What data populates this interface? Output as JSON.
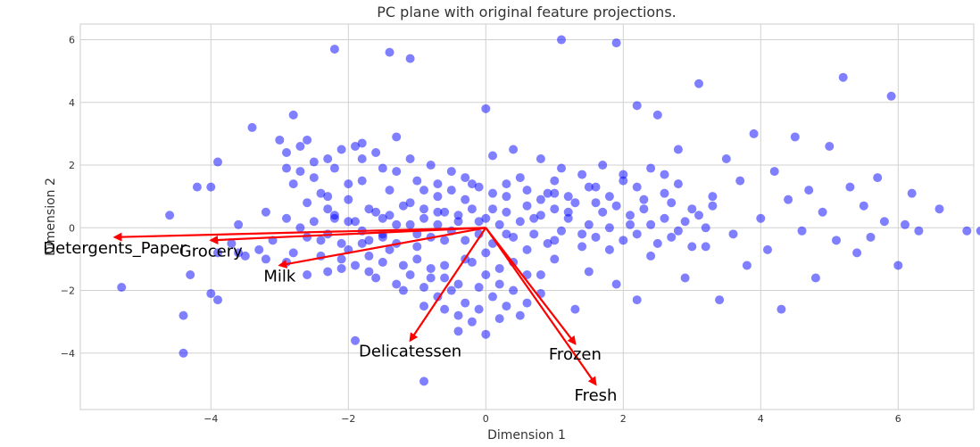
{
  "chart_data": {
    "type": "scatter",
    "title": "PC plane with original feature projections.",
    "xlabel": "Dimension 1",
    "ylabel": "Dimension 2",
    "xlim": [
      -5.9,
      7.1
    ],
    "ylim": [
      -5.8,
      6.5
    ],
    "xticks": [
      -4,
      -2,
      0,
      2,
      4,
      6
    ],
    "yticks": [
      -4,
      -2,
      0,
      2,
      4,
      6
    ],
    "xtick_labels": [
      "−4",
      "−2",
      "0",
      "2",
      "4",
      "6"
    ],
    "ytick_labels": [
      "−4",
      "−2",
      "0",
      "2",
      "4",
      "6"
    ],
    "grid": true,
    "point_color": "#0000ff",
    "arrow_color": "#ff0000",
    "points": [
      [
        -5.3,
        -1.9
      ],
      [
        -4.6,
        0.4
      ],
      [
        -4.4,
        -2.8
      ],
      [
        -4.4,
        -4.0
      ],
      [
        -4.3,
        -1.5
      ],
      [
        -4.2,
        1.3
      ],
      [
        -4.0,
        1.3
      ],
      [
        -4.0,
        -2.1
      ],
      [
        -3.9,
        -2.3
      ],
      [
        -3.9,
        2.1
      ],
      [
        -3.9,
        -0.8
      ],
      [
        -3.7,
        -0.5
      ],
      [
        -3.6,
        -0.8
      ],
      [
        -3.6,
        0.1
      ],
      [
        -3.5,
        -0.9
      ],
      [
        -3.4,
        3.2
      ],
      [
        -3.3,
        -0.7
      ],
      [
        -3.2,
        -1.0
      ],
      [
        -3.1,
        -0.4
      ],
      [
        -3.0,
        2.8
      ],
      [
        -2.9,
        2.4
      ],
      [
        -2.9,
        1.9
      ],
      [
        -2.9,
        -1.1
      ],
      [
        -2.8,
        3.6
      ],
      [
        -2.8,
        1.4
      ],
      [
        -2.8,
        -0.8
      ],
      [
        -2.7,
        2.6
      ],
      [
        -2.7,
        1.8
      ],
      [
        -2.6,
        2.8
      ],
      [
        -2.6,
        -0.3
      ],
      [
        -2.6,
        -1.5
      ],
      [
        -2.5,
        2.1
      ],
      [
        -2.5,
        1.6
      ],
      [
        -2.5,
        0.2
      ],
      [
        -2.4,
        1.1
      ],
      [
        -2.4,
        -0.9
      ],
      [
        -2.3,
        2.2
      ],
      [
        -2.3,
        1.0
      ],
      [
        -2.3,
        0.6
      ],
      [
        -2.3,
        -0.2
      ],
      [
        -2.2,
        5.7
      ],
      [
        -2.2,
        1.9
      ],
      [
        -2.2,
        0.3
      ],
      [
        -2.1,
        2.5
      ],
      [
        -2.1,
        -1.3
      ],
      [
        -2.0,
        1.4
      ],
      [
        -2.0,
        0.9
      ],
      [
        -2.0,
        -0.7
      ],
      [
        -1.9,
        2.6
      ],
      [
        -1.9,
        0.2
      ],
      [
        -1.9,
        -3.6
      ],
      [
        -1.8,
        2.7
      ],
      [
        -1.8,
        2.2
      ],
      [
        -1.8,
        1.5
      ],
      [
        -1.8,
        -0.5
      ],
      [
        -1.7,
        0.6
      ],
      [
        -1.7,
        -0.9
      ],
      [
        -1.6,
        2.4
      ],
      [
        -1.6,
        -1.6
      ],
      [
        -1.5,
        1.9
      ],
      [
        -1.5,
        0.3
      ],
      [
        -1.5,
        -0.3
      ],
      [
        -1.4,
        5.6
      ],
      [
        -1.4,
        1.2
      ],
      [
        -1.4,
        -0.7
      ],
      [
        -1.3,
        2.9
      ],
      [
        -1.3,
        1.8
      ],
      [
        -1.3,
        0.1
      ],
      [
        -1.2,
        -1.2
      ],
      [
        -1.2,
        -2.0
      ],
      [
        -1.1,
        5.4
      ],
      [
        -1.1,
        2.2
      ],
      [
        -1.1,
        0.8
      ],
      [
        -1.0,
        -0.6
      ],
      [
        -1.0,
        1.5
      ],
      [
        -0.9,
        -4.9
      ],
      [
        -0.9,
        -2.5
      ],
      [
        -0.9,
        0.3
      ],
      [
        -0.8,
        2.0
      ],
      [
        -0.8,
        -1.6
      ],
      [
        -0.7,
        1.4
      ],
      [
        -0.7,
        0.5
      ],
      [
        -0.6,
        -0.4
      ],
      [
        -0.6,
        -1.2
      ],
      [
        -0.5,
        1.2
      ],
      [
        -0.4,
        0.2
      ],
      [
        -0.4,
        -2.8
      ],
      [
        -0.3,
        0.9
      ],
      [
        -0.3,
        -1.0
      ],
      [
        -0.2,
        1.4
      ],
      [
        -0.1,
        0.2
      ],
      [
        0.0,
        -0.8
      ],
      [
        -0.1,
        -1.9
      ],
      [
        0.0,
        3.8
      ],
      [
        0.1,
        2.3
      ],
      [
        0.1,
        0.6
      ],
      [
        0.2,
        -1.3
      ],
      [
        0.3,
        1.0
      ],
      [
        0.3,
        -0.2
      ],
      [
        0.4,
        2.5
      ],
      [
        0.4,
        -2.0
      ],
      [
        0.5,
        1.6
      ],
      [
        0.6,
        -0.7
      ],
      [
        0.6,
        -1.5
      ],
      [
        0.7,
        0.3
      ],
      [
        0.8,
        2.2
      ],
      [
        0.8,
        -2.1
      ],
      [
        0.9,
        1.1
      ],
      [
        1.0,
        -0.4
      ],
      [
        1.0,
        -1.0
      ],
      [
        1.1,
        6.0
      ],
      [
        1.1,
        1.9
      ],
      [
        1.2,
        0.5
      ],
      [
        1.3,
        -2.6
      ],
      [
        1.4,
        -0.2
      ],
      [
        1.5,
        1.3
      ],
      [
        1.5,
        -1.4
      ],
      [
        1.6,
        0.8
      ],
      [
        1.7,
        2.0
      ],
      [
        1.8,
        -0.7
      ],
      [
        1.9,
        5.9
      ],
      [
        1.9,
        -1.8
      ],
      [
        2.0,
        1.5
      ],
      [
        2.1,
        0.1
      ],
      [
        2.2,
        3.9
      ],
      [
        2.2,
        -2.3
      ],
      [
        2.3,
        0.9
      ],
      [
        2.4,
        -0.9
      ],
      [
        2.5,
        3.6
      ],
      [
        2.6,
        1.7
      ],
      [
        2.7,
        -0.3
      ],
      [
        2.8,
        2.5
      ],
      [
        2.9,
        -1.6
      ],
      [
        3.0,
        0.6
      ],
      [
        3.1,
        4.6
      ],
      [
        3.2,
        -0.6
      ],
      [
        3.3,
        1.0
      ],
      [
        3.4,
        -2.3
      ],
      [
        3.5,
        2.2
      ],
      [
        3.6,
        -0.2
      ],
      [
        3.7,
        1.5
      ],
      [
        3.8,
        -1.2
      ],
      [
        3.9,
        3.0
      ],
      [
        4.0,
        0.3
      ],
      [
        4.1,
        -0.7
      ],
      [
        4.2,
        1.8
      ],
      [
        4.3,
        -2.6
      ],
      [
        4.4,
        0.9
      ],
      [
        4.5,
        2.9
      ],
      [
        4.6,
        -0.1
      ],
      [
        4.7,
        1.2
      ],
      [
        4.8,
        -1.6
      ],
      [
        4.9,
        0.5
      ],
      [
        5.0,
        2.6
      ],
      [
        5.1,
        -0.4
      ],
      [
        5.2,
        4.8
      ],
      [
        5.3,
        1.3
      ],
      [
        5.4,
        -0.8
      ],
      [
        5.5,
        0.7
      ],
      [
        5.6,
        -0.3
      ],
      [
        5.7,
        1.6
      ],
      [
        5.8,
        0.2
      ],
      [
        5.9,
        4.2
      ],
      [
        6.0,
        -1.2
      ],
      [
        6.1,
        0.1
      ],
      [
        6.2,
        1.1
      ],
      [
        6.3,
        -0.1
      ],
      [
        6.6,
        0.6
      ],
      [
        7.0,
        -0.1
      ],
      [
        7.2,
        -0.1
      ],
      [
        -3.2,
        0.5
      ],
      [
        -2.9,
        0.3
      ],
      [
        -2.7,
        0.0
      ],
      [
        -2.6,
        0.8
      ],
      [
        -2.4,
        -0.4
      ],
      [
        -2.2,
        0.4
      ],
      [
        -2.1,
        -0.5
      ],
      [
        -2.0,
        0.2
      ],
      [
        -1.8,
        -0.1
      ],
      [
        -1.7,
        -0.4
      ],
      [
        -1.6,
        0.5
      ],
      [
        -1.5,
        -0.2
      ],
      [
        -1.4,
        0.4
      ],
      [
        -1.3,
        -0.5
      ],
      [
        -1.2,
        0.7
      ],
      [
        -1.1,
        0.1
      ],
      [
        -1.0,
        -0.2
      ],
      [
        -0.9,
        0.6
      ],
      [
        -0.8,
        -0.3
      ],
      [
        -0.7,
        0.1
      ],
      [
        -0.6,
        0.5
      ],
      [
        -0.5,
        -0.1
      ],
      [
        -0.4,
        0.4
      ],
      [
        -0.3,
        -0.4
      ],
      [
        -0.2,
        0.6
      ],
      [
        -0.1,
        -0.2
      ],
      [
        0.0,
        0.3
      ],
      [
        0.1,
        -0.5
      ],
      [
        0.2,
        0.1
      ],
      [
        0.3,
        0.5
      ],
      [
        0.4,
        -0.3
      ],
      [
        0.5,
        0.2
      ],
      [
        0.6,
        0.7
      ],
      [
        0.7,
        -0.2
      ],
      [
        0.8,
        0.4
      ],
      [
        0.9,
        -0.5
      ],
      [
        1.0,
        0.6
      ],
      [
        1.1,
        -0.1
      ],
      [
        1.2,
        0.3
      ],
      [
        1.3,
        0.8
      ],
      [
        1.4,
        -0.6
      ],
      [
        1.5,
        0.1
      ],
      [
        1.6,
        -0.3
      ],
      [
        1.7,
        0.5
      ],
      [
        1.8,
        0.0
      ],
      [
        1.9,
        0.7
      ],
      [
        2.0,
        -0.4
      ],
      [
        2.1,
        0.4
      ],
      [
        2.2,
        -0.2
      ],
      [
        2.3,
        0.6
      ],
      [
        2.4,
        0.1
      ],
      [
        2.5,
        -0.5
      ],
      [
        2.6,
        0.3
      ],
      [
        2.7,
        0.8
      ],
      [
        2.8,
        -0.1
      ],
      [
        2.9,
        0.2
      ],
      [
        3.0,
        -0.6
      ],
      [
        3.1,
        0.4
      ],
      [
        3.2,
        0.0
      ],
      [
        3.3,
        0.7
      ],
      [
        -1.0,
        -1.0
      ],
      [
        -0.8,
        -1.3
      ],
      [
        -0.6,
        -1.6
      ],
      [
        -0.4,
        -1.8
      ],
      [
        -0.2,
        -1.1
      ],
      [
        0.0,
        -1.5
      ],
      [
        0.2,
        -1.8
      ],
      [
        0.4,
        -1.1
      ],
      [
        0.6,
        -2.4
      ],
      [
        0.8,
        -1.5
      ],
      [
        -1.3,
        -1.8
      ],
      [
        -1.1,
        -1.5
      ],
      [
        -0.9,
        -1.9
      ],
      [
        -0.7,
        -2.2
      ],
      [
        -0.5,
        -2.0
      ],
      [
        -0.3,
        -2.4
      ],
      [
        -0.1,
        -2.6
      ],
      [
        0.1,
        -2.2
      ],
      [
        0.3,
        -2.5
      ],
      [
        0.5,
        -2.8
      ],
      [
        -0.4,
        -3.3
      ],
      [
        -0.2,
        -3.0
      ],
      [
        0.0,
        -3.4
      ],
      [
        0.2,
        -2.9
      ],
      [
        -0.6,
        -2.6
      ],
      [
        -1.5,
        -1.1
      ],
      [
        -1.7,
        -1.4
      ],
      [
        -1.9,
        -1.2
      ],
      [
        -2.1,
        -1.0
      ],
      [
        -2.3,
        -1.4
      ],
      [
        1.0,
        1.5
      ],
      [
        1.2,
        1.0
      ],
      [
        1.4,
        1.7
      ],
      [
        1.6,
        1.3
      ],
      [
        1.8,
        1.0
      ],
      [
        2.0,
        1.7
      ],
      [
        2.2,
        1.3
      ],
      [
        2.4,
        1.9
      ],
      [
        2.6,
        1.1
      ],
      [
        2.8,
        1.4
      ],
      [
        0.6,
        1.2
      ],
      [
        0.8,
        0.9
      ],
      [
        1.0,
        1.1
      ],
      [
        0.3,
        1.4
      ],
      [
        0.1,
        1.1
      ],
      [
        -0.1,
        1.3
      ],
      [
        -0.3,
        1.6
      ],
      [
        -0.5,
        1.8
      ],
      [
        -0.7,
        1.0
      ],
      [
        -0.9,
        1.2
      ]
    ],
    "arrows": [
      {
        "name": "Detergents_Paper",
        "x": -5.4,
        "y": -0.3
      },
      {
        "name": "Grocery",
        "x": -4.0,
        "y": -0.4
      },
      {
        "name": "Milk",
        "x": -3.0,
        "y": -1.2
      },
      {
        "name": "Delicatessen",
        "x": -1.1,
        "y": -3.6
      },
      {
        "name": "Frozen",
        "x": 1.3,
        "y": -3.7
      },
      {
        "name": "Fresh",
        "x": 1.6,
        "y": -5.0
      }
    ]
  }
}
